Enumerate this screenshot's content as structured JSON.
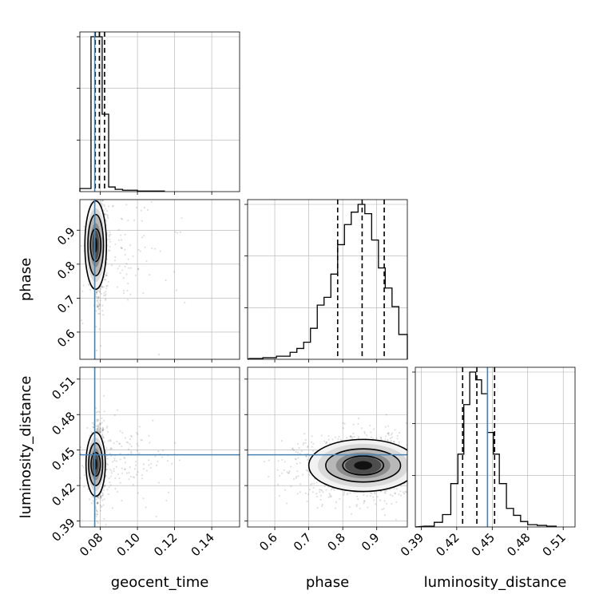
{
  "figure": {
    "type": "corner-plot",
    "background": "#ffffff",
    "truth_color": "#4682b4",
    "line_color": "#000000",
    "grid_color": "#b0b0b0"
  },
  "parameters": [
    "geocent_time",
    "phase",
    "luminosity_distance"
  ],
  "truth": {
    "geocent_time": 0.077,
    "phase": null,
    "luminosity_distance": 0.446
  },
  "chart_data": [
    {
      "type": "histogram",
      "parameter": "geocent_time",
      "xlim": [
        0.069,
        0.155
      ],
      "xticks": [
        0.08,
        0.1,
        0.12,
        0.14
      ],
      "yticks": [
        0.333,
        0.667,
        1.0
      ],
      "bins": [
        {
          "x0": 0.069,
          "x1": 0.075,
          "y": 0.02
        },
        {
          "x0": 0.075,
          "x1": 0.0785,
          "y": 1.0
        },
        {
          "x0": 0.0785,
          "x1": 0.081,
          "y": 1.0
        },
        {
          "x0": 0.081,
          "x1": 0.0845,
          "y": 0.5
        },
        {
          "x0": 0.0845,
          "x1": 0.088,
          "y": 0.03
        },
        {
          "x0": 0.088,
          "x1": 0.092,
          "y": 0.015
        },
        {
          "x0": 0.092,
          "x1": 0.1,
          "y": 0.009
        },
        {
          "x0": 0.1,
          "x1": 0.1145,
          "y": 0.004
        }
      ],
      "quantiles": [
        0.0773,
        0.0795,
        0.0823
      ],
      "truth": 0.077
    },
    {
      "type": "histogram",
      "parameter": "phase",
      "xlim": [
        0.52,
        0.99
      ],
      "xticks": [
        0.6,
        0.7,
        0.8,
        0.9
      ],
      "yticks": [
        0.333,
        0.667,
        1.0
      ],
      "bins": [
        {
          "x0": 0.525,
          "x1": 0.545,
          "y": 0.005
        },
        {
          "x0": 0.545,
          "x1": 0.565,
          "y": 0.005
        },
        {
          "x0": 0.565,
          "x1": 0.585,
          "y": 0.01
        },
        {
          "x0": 0.585,
          "x1": 0.605,
          "y": 0.01
        },
        {
          "x0": 0.605,
          "x1": 0.625,
          "y": 0.02
        },
        {
          "x0": 0.625,
          "x1": 0.645,
          "y": 0.02
        },
        {
          "x0": 0.645,
          "x1": 0.665,
          "y": 0.045
        },
        {
          "x0": 0.665,
          "x1": 0.685,
          "y": 0.07
        },
        {
          "x0": 0.685,
          "x1": 0.705,
          "y": 0.11
        },
        {
          "x0": 0.705,
          "x1": 0.725,
          "y": 0.2
        },
        {
          "x0": 0.725,
          "x1": 0.745,
          "y": 0.35
        },
        {
          "x0": 0.745,
          "x1": 0.765,
          "y": 0.4
        },
        {
          "x0": 0.765,
          "x1": 0.785,
          "y": 0.55
        },
        {
          "x0": 0.785,
          "x1": 0.805,
          "y": 0.74
        },
        {
          "x0": 0.805,
          "x1": 0.825,
          "y": 0.87
        },
        {
          "x0": 0.825,
          "x1": 0.845,
          "y": 0.95
        },
        {
          "x0": 0.845,
          "x1": 0.865,
          "y": 1.0
        },
        {
          "x0": 0.865,
          "x1": 0.885,
          "y": 0.94
        },
        {
          "x0": 0.885,
          "x1": 0.905,
          "y": 0.77
        },
        {
          "x0": 0.905,
          "x1": 0.925,
          "y": 0.59
        },
        {
          "x0": 0.925,
          "x1": 0.945,
          "y": 0.46
        },
        {
          "x0": 0.945,
          "x1": 0.965,
          "y": 0.34
        },
        {
          "x0": 0.965,
          "x1": 0.99,
          "y": 0.16
        }
      ],
      "quantiles": [
        0.785,
        0.857,
        0.922
      ],
      "truth": null
    },
    {
      "type": "histogram",
      "parameter": "luminosity_distance",
      "xlim": [
        0.385,
        0.52
      ],
      "xticks": [
        0.39,
        0.42,
        0.45,
        0.48,
        0.51
      ],
      "yticks": [
        0.333,
        0.667,
        1.0
      ],
      "bins": [
        {
          "x0": 0.393,
          "x1": 0.401,
          "y": 0.005
        },
        {
          "x0": 0.401,
          "x1": 0.408,
          "y": 0.03
        },
        {
          "x0": 0.408,
          "x1": 0.415,
          "y": 0.08
        },
        {
          "x0": 0.415,
          "x1": 0.421,
          "y": 0.28
        },
        {
          "x0": 0.421,
          "x1": 0.426,
          "y": 0.47
        },
        {
          "x0": 0.426,
          "x1": 0.431,
          "y": 0.79
        },
        {
          "x0": 0.431,
          "x1": 0.436,
          "y": 1.0
        },
        {
          "x0": 0.436,
          "x1": 0.441,
          "y": 0.95
        },
        {
          "x0": 0.441,
          "x1": 0.446,
          "y": 0.86
        },
        {
          "x0": 0.446,
          "x1": 0.451,
          "y": 0.61
        },
        {
          "x0": 0.451,
          "x1": 0.456,
          "y": 0.47
        },
        {
          "x0": 0.456,
          "x1": 0.462,
          "y": 0.28
        },
        {
          "x0": 0.462,
          "x1": 0.468,
          "y": 0.12
        },
        {
          "x0": 0.468,
          "x1": 0.474,
          "y": 0.075
        },
        {
          "x0": 0.474,
          "x1": 0.48,
          "y": 0.035
        },
        {
          "x0": 0.48,
          "x1": 0.488,
          "y": 0.015
        },
        {
          "x0": 0.488,
          "x1": 0.496,
          "y": 0.01
        },
        {
          "x0": 0.496,
          "x1": 0.504,
          "y": 0.005
        }
      ],
      "quantiles": [
        0.425,
        0.437,
        0.452
      ],
      "truth": 0.446
    },
    {
      "type": "scatter-contour",
      "x": "geocent_time",
      "y": "phase",
      "xlim": [
        0.069,
        0.155
      ],
      "ylim": [
        0.52,
        0.99
      ],
      "yticks": [
        0.6,
        0.7,
        0.8,
        0.9
      ],
      "center": [
        0.0775,
        0.856
      ],
      "contour_levels": [
        {
          "rx": 0.0028,
          "ry": 0.048
        },
        {
          "rx": 0.0042,
          "ry": 0.09
        },
        {
          "rx": 0.0058,
          "ry": 0.13
        }
      ],
      "truth_x": 0.077,
      "truth_y": null
    },
    {
      "type": "scatter-contour",
      "x": "geocent_time",
      "y": "luminosity_distance",
      "xlim": [
        0.069,
        0.155
      ],
      "ylim": [
        0.385,
        0.52
      ],
      "yticks": [
        0.39,
        0.42,
        0.45,
        0.48,
        0.51
      ],
      "center": [
        0.0775,
        0.438
      ],
      "contour_levels": [
        {
          "rx": 0.0025,
          "ry": 0.01
        },
        {
          "rx": 0.0038,
          "ry": 0.018
        },
        {
          "rx": 0.0052,
          "ry": 0.027
        }
      ],
      "truth_x": 0.077,
      "truth_y": 0.446
    },
    {
      "type": "scatter-contour",
      "x": "phase",
      "y": "luminosity_distance",
      "xlim": [
        0.52,
        0.99
      ],
      "ylim": [
        0.385,
        0.52
      ],
      "center": [
        0.86,
        0.437
      ],
      "contour_levels": [
        {
          "rx": 0.06,
          "ry": 0.008
        },
        {
          "rx": 0.11,
          "ry": 0.014
        },
        {
          "rx": 0.16,
          "ry": 0.022
        }
      ],
      "truth_x": null,
      "truth_y": 0.446
    }
  ],
  "tick_labels": {
    "geocent_time": [
      "0.08",
      "0.10",
      "0.12",
      "0.14"
    ],
    "phase": [
      "0.6",
      "0.7",
      "0.8",
      "0.9"
    ],
    "luminosity_distance": [
      "0.39",
      "0.42",
      "0.45",
      "0.48",
      "0.51"
    ]
  },
  "axis_labels": {
    "bottom": [
      "geocent_time",
      "phase",
      "luminosity_distance"
    ],
    "left": [
      "phase",
      "luminosity_distance"
    ]
  }
}
